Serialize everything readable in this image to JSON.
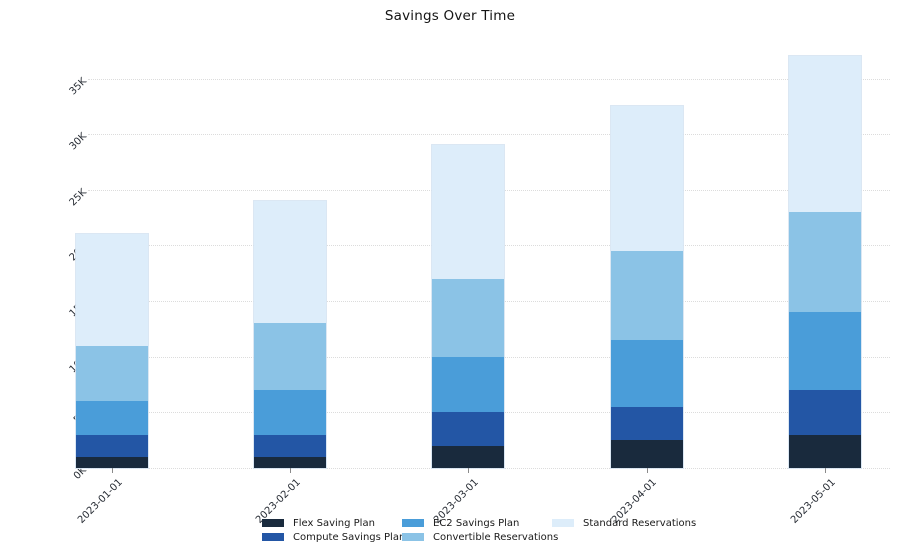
{
  "chart_data": {
    "type": "bar",
    "stacked": true,
    "title": "Savings Over Time",
    "categories": [
      "2023-01-01",
      "2023-02-01",
      "2023-03-01",
      "2023-04-01",
      "2023-05-01"
    ],
    "series": [
      {
        "name": "Flex Saving Plan",
        "color": "#192a3d",
        "values": [
          1000,
          1000,
          2000,
          2500,
          3000
        ]
      },
      {
        "name": "Compute Savings Plan",
        "color": "#2356a5",
        "values": [
          2000,
          2000,
          3000,
          3000,
          4000
        ]
      },
      {
        "name": "EC2 Savings Plan",
        "color": "#4a9dd9",
        "values": [
          3000,
          4000,
          5000,
          6000,
          7000
        ]
      },
      {
        "name": "Convertible Reservations",
        "color": "#8bc3e6",
        "values": [
          5000,
          6000,
          7000,
          8000,
          9000
        ]
      },
      {
        "name": "Standard Reservations",
        "color": "#ddedfa",
        "values": [
          10000,
          11000,
          12000,
          13000,
          14000
        ]
      }
    ],
    "totals": [
      21000,
      24000,
      29000,
      32500,
      37000
    ],
    "y_axis": {
      "min": 0,
      "max": 35000,
      "step": 5000,
      "tick_labels": [
        "0K",
        "5K",
        "10K",
        "15K",
        "20K",
        "25K",
        "30K",
        "35K"
      ]
    },
    "grid": "horizontal-dotted",
    "legend_position": "bottom",
    "legend": {
      "columns": [
        [
          0,
          1
        ],
        [
          2,
          3
        ],
        [
          4
        ]
      ]
    }
  }
}
